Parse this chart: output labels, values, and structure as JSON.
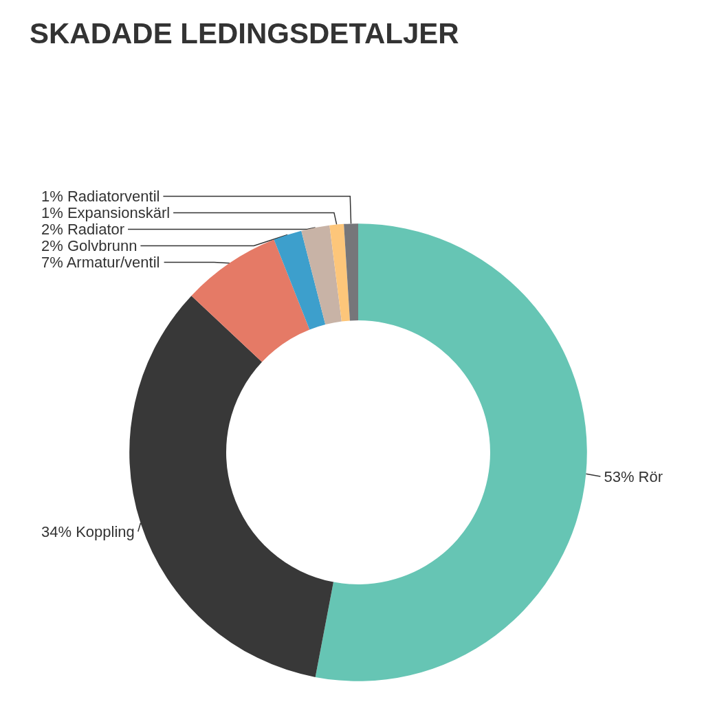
{
  "chart_data": {
    "type": "donut",
    "title": "SKADADE LEDINGSDETALJER",
    "categories": [
      "Rör",
      "Koppling",
      "Armatur/ventil",
      "Golvbrunn",
      "Radiator",
      "Expansionskärl",
      "Radiatorventil"
    ],
    "values": [
      53,
      34,
      7,
      2,
      2,
      1,
      1
    ],
    "value_labels": [
      "53%",
      "34%",
      "7%",
      "2%",
      "2%",
      "1%",
      "1%"
    ],
    "colors": [
      "#66c5b4",
      "#383838",
      "#e57a66",
      "#3d9fcc",
      "#c8b3a6",
      "#fdc67a",
      "#76767a"
    ],
    "legend": false
  }
}
